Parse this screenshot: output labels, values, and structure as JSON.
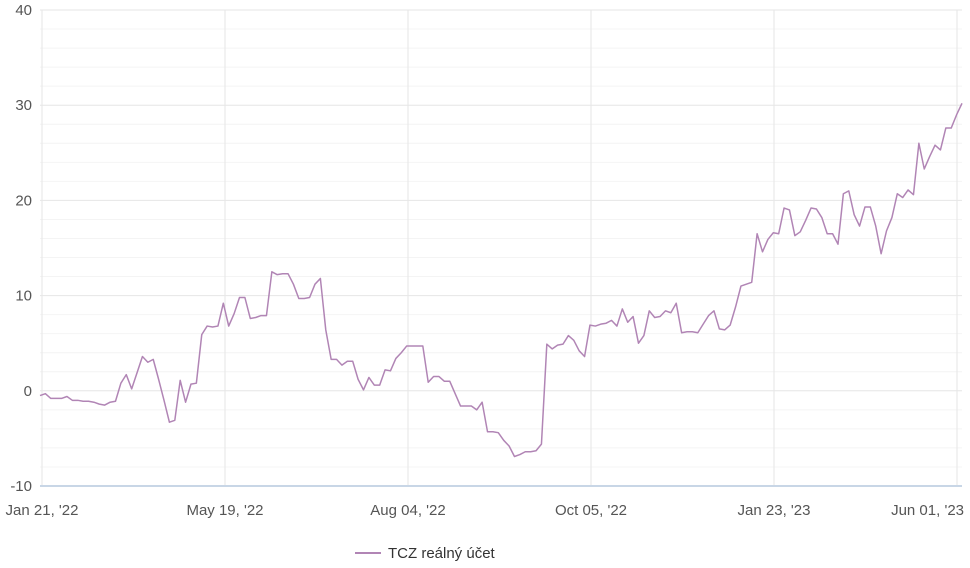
{
  "chart_data": {
    "type": "line",
    "x_tick_labels": [
      "Jan 21, '22",
      "May 19, '22",
      "Aug 04, '22",
      "Oct 05, '22",
      "Jan 23, '23",
      "Jun 01, '23"
    ],
    "y_ticks": [
      -10,
      0,
      10,
      20,
      30,
      40
    ],
    "ylim": [
      -10,
      40
    ],
    "grid": true,
    "legend": "bottom",
    "colors": {
      "series": "#b185b5",
      "grid": "#e6e6e6",
      "axis": "#c8d6e6"
    },
    "series": [
      {
        "name": "TCZ reálný účet",
        "values": [
          -0.5,
          -0.3,
          -0.8,
          -0.8,
          -0.8,
          -0.6,
          -1.0,
          -1.0,
          -1.1,
          -1.1,
          -1.2,
          -1.4,
          -1.5,
          -1.2,
          -1.1,
          0.8,
          1.7,
          0.2,
          1.9,
          3.6,
          3.0,
          3.3,
          1.2,
          -1.0,
          -3.3,
          -3.1,
          1.1,
          -1.2,
          0.7,
          0.8,
          5.9,
          6.8,
          6.7,
          6.8,
          9.2,
          6.8,
          8.1,
          9.8,
          9.8,
          7.6,
          7.7,
          7.9,
          7.9,
          12.5,
          12.2,
          12.3,
          12.3,
          11.2,
          9.7,
          9.7,
          9.8,
          11.2,
          11.8,
          6.4,
          3.3,
          3.3,
          2.7,
          3.1,
          3.1,
          1.2,
          0.1,
          1.4,
          0.6,
          0.6,
          2.2,
          2.1,
          3.4,
          4.0,
          4.7,
          4.7,
          4.7,
          4.7,
          0.9,
          1.5,
          1.5,
          1.0,
          1.0,
          -0.3,
          -1.6,
          -1.6,
          -1.6,
          -2.0,
          -1.2,
          -4.3,
          -4.3,
          -4.4,
          -5.2,
          -5.8,
          -6.9,
          -6.7,
          -6.4,
          -6.4,
          -6.3,
          -5.6,
          4.9,
          4.4,
          4.8,
          4.9,
          5.8,
          5.3,
          4.2,
          3.6,
          6.9,
          6.8,
          7.0,
          7.1,
          7.4,
          6.8,
          8.6,
          7.2,
          7.8,
          5.0,
          5.8,
          8.4,
          7.7,
          7.8,
          8.4,
          8.2,
          9.2,
          6.1,
          6.2,
          6.2,
          6.1,
          7.0,
          7.9,
          8.4,
          6.5,
          6.4,
          6.9,
          8.8,
          11.0,
          11.2,
          11.4,
          16.5,
          14.6,
          15.9,
          16.6,
          16.5,
          19.2,
          19.0,
          16.3,
          16.7,
          17.9,
          19.2,
          19.1,
          18.2,
          16.5,
          16.5,
          15.4,
          20.7,
          21.0,
          18.5,
          17.3,
          19.3,
          19.3,
          17.3,
          14.4,
          16.8,
          18.2,
          20.7,
          20.3,
          21.1,
          20.6,
          26.0,
          23.3,
          24.6,
          25.8,
          25.3,
          27.6,
          27.6,
          29.0,
          30.2
        ]
      }
    ]
  }
}
